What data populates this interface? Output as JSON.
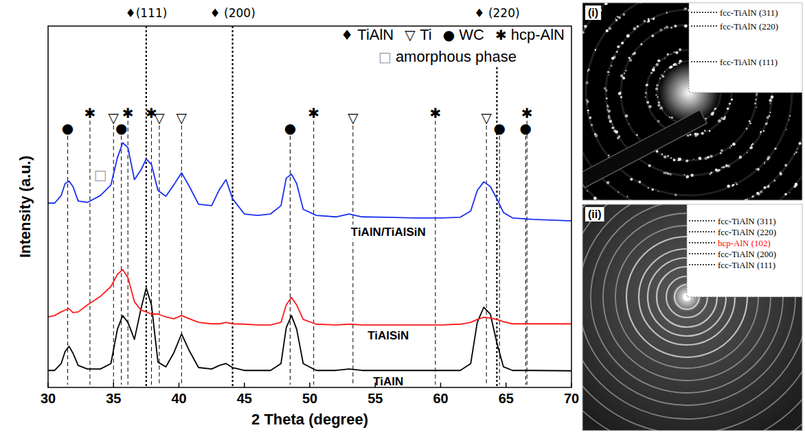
{
  "chart_data": {
    "type": "line",
    "xlabel": "2 Theta (degree)",
    "ylabel": "Intensity (a.u.)",
    "xlim": [
      30,
      70
    ],
    "xticks": [
      30,
      35,
      40,
      45,
      50,
      55,
      60,
      65,
      70
    ],
    "ylim": [
      0,
      100
    ],
    "yticks": [],
    "tick_labels": "x",
    "grid": false,
    "legend": "upper right",
    "x": [
      30,
      30.5,
      31,
      31.3,
      31.6,
      31.9,
      32.3,
      33,
      34,
      34.8,
      35.3,
      35.7,
      36.1,
      36.6,
      37.1,
      37.5,
      37.9,
      38.4,
      39,
      39.6,
      40.2,
      40.8,
      41.5,
      42.5,
      43.1,
      43.6,
      44.1,
      45,
      46,
      47,
      47.8,
      48.2,
      48.6,
      49,
      49.5,
      50.5,
      52,
      53,
      54,
      56,
      58,
      60,
      61.5,
      62.3,
      62.8,
      63.3,
      63.8,
      64.3,
      64.8,
      65.5,
      67,
      70
    ],
    "series": [
      {
        "name": "TiAlN",
        "color": "#000000",
        "values": [
          4.7,
          4.7,
          6.6,
          9.9,
          11.4,
          9.5,
          6.1,
          5.1,
          5.1,
          6.6,
          16.1,
          19.9,
          18.0,
          13.3,
          21.8,
          27.5,
          22.8,
          7.0,
          5.7,
          9.5,
          14.8,
          10.1,
          5.5,
          5.1,
          6.1,
          6.6,
          5.5,
          4.7,
          4.7,
          4.7,
          6.6,
          16.5,
          19.9,
          16.1,
          6.6,
          4.7,
          4.7,
          5.1,
          4.7,
          4.7,
          4.7,
          4.7,
          4.7,
          6.6,
          18.0,
          22.2,
          20.3,
          12.3,
          5.7,
          4.7,
          4.7,
          4.6
        ]
      },
      {
        "name": "TiAlSiN",
        "color": "#ff1a1a",
        "values": [
          19.5,
          19.9,
          20.9,
          21.4,
          21.8,
          20.7,
          20.9,
          22.8,
          25.2,
          27.9,
          31.3,
          32.6,
          30.4,
          23.7,
          21.4,
          20.9,
          20.3,
          20.3,
          19.5,
          19.0,
          19.9,
          19.0,
          18.0,
          17.6,
          17.6,
          18.0,
          17.6,
          17.5,
          17.3,
          17.3,
          18.0,
          22.8,
          24.9,
          22.8,
          18.8,
          17.5,
          17.3,
          17.5,
          17.3,
          17.3,
          17.3,
          17.3,
          17.5,
          18.0,
          18.8,
          19.4,
          19.2,
          18.8,
          18.2,
          17.6,
          17.6,
          17.6
        ]
      },
      {
        "name": "TiAlN/TiAlSiN",
        "color": "#1a2ff0",
        "values": [
          51.0,
          51.0,
          53.1,
          56.4,
          57.1,
          55.6,
          51.6,
          51.2,
          53.1,
          56.0,
          63.6,
          67.7,
          66.4,
          57.5,
          60.2,
          63.2,
          61.7,
          54.5,
          52.9,
          56.0,
          59.4,
          55.6,
          50.7,
          50.3,
          54.8,
          57.5,
          52.2,
          48.0,
          47.6,
          48.0,
          50.3,
          57.9,
          59.0,
          56.4,
          49.3,
          47.6,
          47.2,
          48.0,
          47.2,
          47.1,
          46.9,
          46.9,
          47.1,
          48.8,
          54.5,
          56.9,
          55.6,
          52.2,
          48.4,
          46.9,
          46.5,
          46.1
        ]
      }
    ],
    "reference_lines": [
      {
        "symbol": "♦",
        "name": "TiAlN",
        "color": "#000000",
        "positions": [
          {
            "value": 37.5,
            "label": "♦(111)"
          },
          {
            "value": 44.1,
            "label": "♦ (200)"
          },
          {
            "value": 64.3,
            "label": "♦ (220)"
          }
        ]
      },
      {
        "symbol": "▽",
        "name": "Ti",
        "color": "#000000",
        "positions": [
          35.0,
          38.5,
          40.2,
          53.3,
          63.5
        ]
      },
      {
        "symbol": "●",
        "name": "WC",
        "color": "#000000",
        "positions": [
          31.5,
          35.6,
          48.5,
          64.5,
          66.5
        ]
      },
      {
        "symbol": "✱",
        "name": "hcp-AlN",
        "color": "#000000",
        "positions": [
          33.2,
          36.1,
          37.9,
          50.3,
          59.6,
          66.6
        ]
      },
      {
        "symbol": "□",
        "name": "amorphous phase",
        "color": "#999999",
        "points": [
          {
            "x": 34,
            "y": 58.8
          }
        ]
      }
    ]
  },
  "insets": [
    {
      "letter": "(i)",
      "rings": [
        {
          "label": "fcc-TiAlN (311)",
          "color": "#000000"
        },
        {
          "label": "fcc-TiAlN (220)",
          "color": "#000000"
        },
        {
          "label": "fcc-TiAlN (111)",
          "color": "#000000"
        }
      ]
    },
    {
      "letter": "(ii)",
      "rings": [
        {
          "label": "fcc-TiAlN (311)",
          "color": "#000000"
        },
        {
          "label": "fcc-TiAlN (220)",
          "color": "#000000"
        },
        {
          "label": "hcp-AlN (102)",
          "color": "#ff0000"
        },
        {
          "label": "fcc-TiAlN (200)",
          "color": "#000000"
        },
        {
          "label": "fcc-TiAlN (111)",
          "color": "#000000"
        }
      ]
    }
  ]
}
